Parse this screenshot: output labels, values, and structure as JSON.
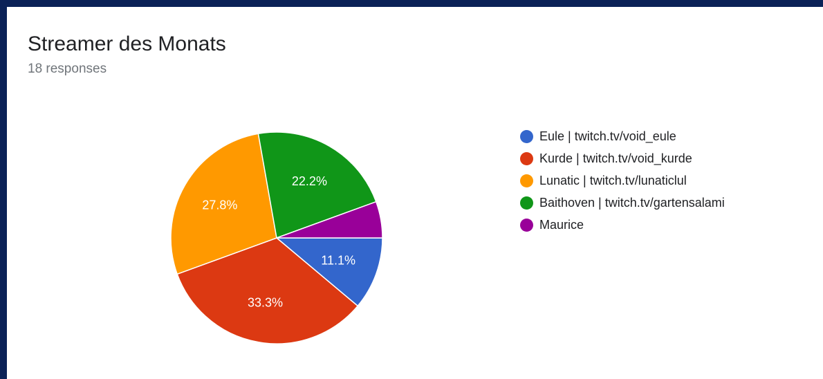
{
  "chart_data": {
    "type": "pie",
    "title": "Streamer des Monats",
    "subtitle": "18 responses",
    "legend_position": "right",
    "slices": [
      {
        "label": "Eule | twitch.tv/void_eule",
        "value": 2,
        "percent_label": "11.1%",
        "color": "#3366cc"
      },
      {
        "label": "Kurde | twitch.tv/void_kurde",
        "value": 6,
        "percent_label": "33.3%",
        "color": "#dc3912"
      },
      {
        "label": "Lunatic | twitch.tv/lunaticlul",
        "value": 5,
        "percent_label": "27.8%",
        "color": "#ff9900"
      },
      {
        "label": "Baithoven | twitch.tv/gartensalami",
        "value": 4,
        "percent_label": "22.2%",
        "color": "#109618"
      },
      {
        "label": "Maurice",
        "value": 1,
        "percent_label": "",
        "color": "#990099"
      }
    ]
  }
}
